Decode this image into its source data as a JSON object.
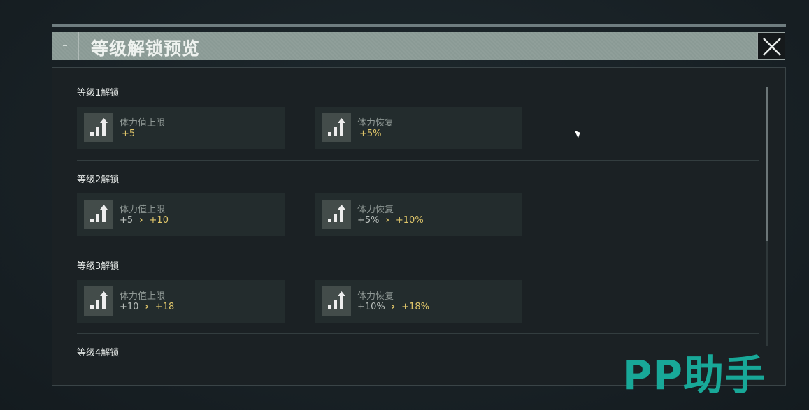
{
  "dialog": {
    "title": "等级解锁预览",
    "close_icon": "close-icon"
  },
  "sections": [
    {
      "title": "等级1解锁",
      "cards": [
        {
          "name": "体力值上限",
          "from": "",
          "to": "+5"
        },
        {
          "name": "体力恢复",
          "from": "",
          "to": "+5%"
        }
      ]
    },
    {
      "title": "等级2解锁",
      "cards": [
        {
          "name": "体力值上限",
          "from": "+5",
          "to": "+10"
        },
        {
          "name": "体力恢复",
          "from": "+5%",
          "to": "+10%"
        }
      ]
    },
    {
      "title": "等级3解锁",
      "cards": [
        {
          "name": "体力值上限",
          "from": "+10",
          "to": "+18"
        },
        {
          "name": "体力恢复",
          "from": "+10%",
          "to": "+18%"
        }
      ]
    },
    {
      "title": "等级4解锁",
      "cards": []
    }
  ],
  "arrow": "›",
  "watermark": "PP助手",
  "colors": {
    "accent_gold": "#e0c66a",
    "header": "#8a9a95",
    "watermark": "#18a898"
  }
}
